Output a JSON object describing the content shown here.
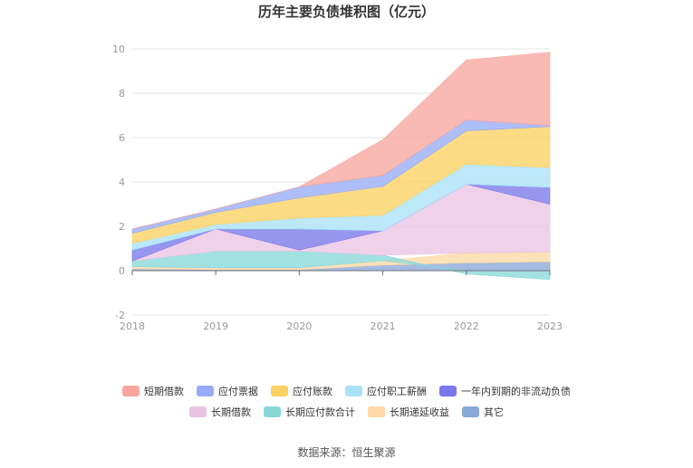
{
  "chart_data": {
    "type": "area",
    "title": "历年主要负债堆积图（亿元）",
    "x": [
      "2018",
      "2019",
      "2020",
      "2021",
      "2022",
      "2023"
    ],
    "ylim": [
      -2,
      10
    ],
    "yticks": [
      "-2",
      "0",
      "2",
      "4",
      "6",
      "8",
      "10"
    ],
    "legend_position": "bottom",
    "series": [
      {
        "name": "其它",
        "color": "#8aa8d8",
        "values": [
          0.08,
          0.05,
          0.05,
          0.25,
          0.35,
          0.4
        ]
      },
      {
        "name": "长期递延收益",
        "color": "#fdd8a4",
        "values": [
          0.1,
          0.08,
          0.08,
          0.2,
          0.45,
          0.45
        ]
      },
      {
        "name": "长期应付款合计",
        "color": "#88d8d8",
        "values": [
          0.25,
          0.75,
          0.75,
          0.25,
          -0.15,
          -0.4
        ]
      },
      {
        "name": "长期借款",
        "color": "#eac4e4",
        "values": [
          0,
          1.0,
          0.05,
          1.1,
          3.1,
          2.15
        ]
      },
      {
        "name": "一年内到期的非流动负债",
        "color": "#7a78ea",
        "values": [
          0.5,
          0,
          0.95,
          0,
          0,
          0.75
        ]
      },
      {
        "name": "应付职工薪酬",
        "color": "#a9e2f7",
        "values": [
          0.3,
          0.2,
          0.5,
          0.7,
          0.9,
          0.9
        ]
      },
      {
        "name": "应付账款",
        "color": "#fbd163",
        "values": [
          0.45,
          0.55,
          0.9,
          1.3,
          1.5,
          1.85
        ]
      },
      {
        "name": "应付票据",
        "color": "#97acf6",
        "values": [
          0.2,
          0.15,
          0.5,
          0.5,
          0.5,
          0.05
        ]
      },
      {
        "name": "短期借款",
        "color": "#f7a69d",
        "values": [
          0,
          0,
          0,
          1.6,
          2.7,
          3.3
        ]
      }
    ]
  },
  "legend": {
    "row1": [
      {
        "name": "短期借款",
        "color": "#f7a69d"
      },
      {
        "name": "应付票据",
        "color": "#97acf6"
      },
      {
        "name": "应付账款",
        "color": "#fbd163"
      },
      {
        "name": "应付职工薪酬",
        "color": "#a9e2f7"
      },
      {
        "name": "一年内到期的非流动负债",
        "color": "#7a78ea"
      }
    ],
    "row2": [
      {
        "name": "长期借款",
        "color": "#eac4e4"
      },
      {
        "name": "长期应付款合计",
        "color": "#88d8d8"
      },
      {
        "name": "长期递延收益",
        "color": "#fdd8a4"
      },
      {
        "name": "其它",
        "color": "#8aa8d8"
      }
    ]
  },
  "source": "数据来源：恒生聚源"
}
